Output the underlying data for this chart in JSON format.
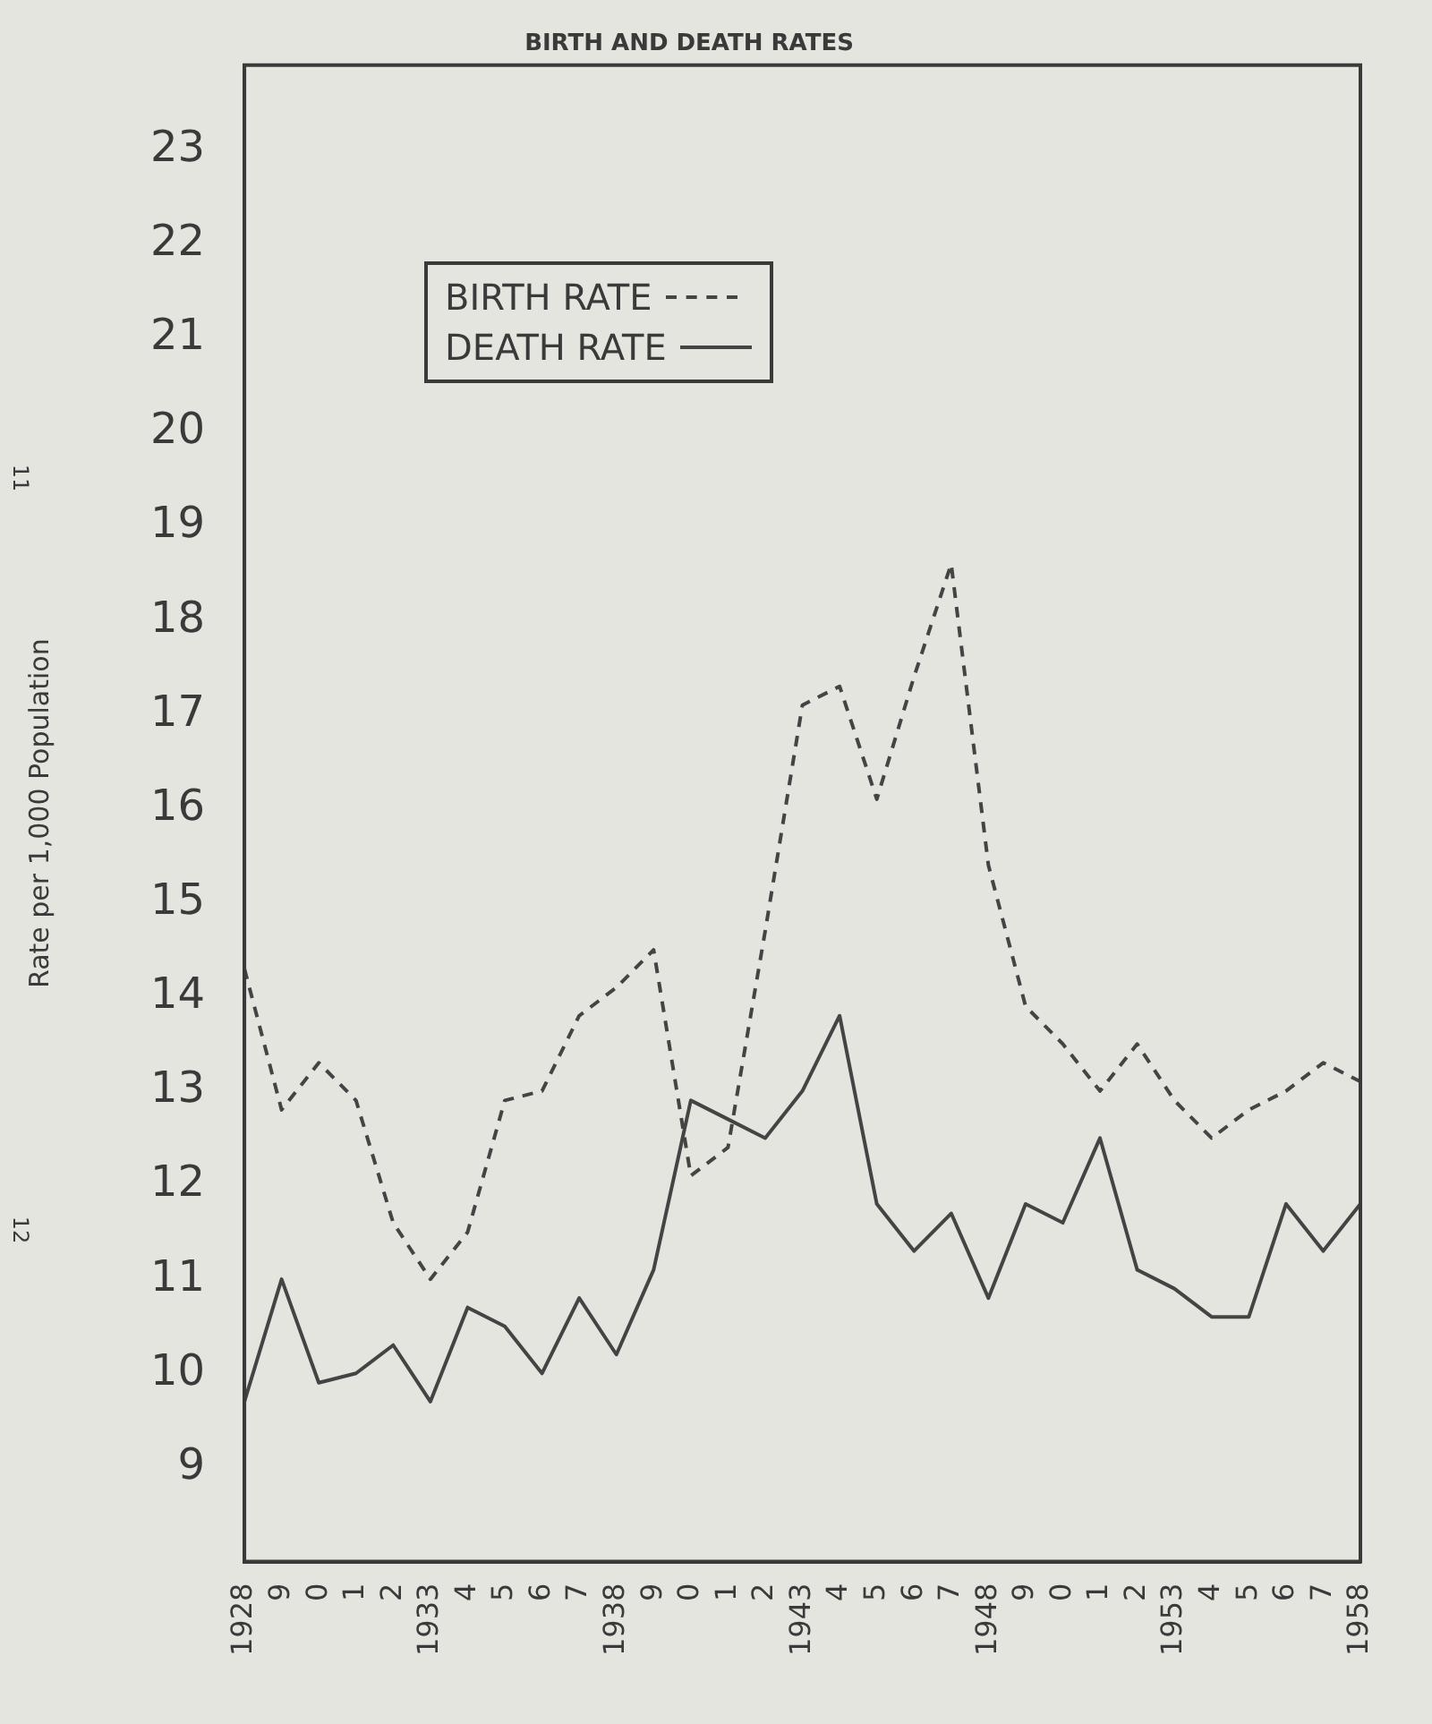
{
  "chart_data": {
    "type": "line",
    "title": "BIRTH AND DEATH RATES",
    "ylabel": "Rate per 1,000 Population",
    "categories": [
      "1928",
      "9",
      "0",
      "1",
      "2",
      "1933",
      "4",
      "5",
      "6",
      "7",
      "1938",
      "9",
      "0",
      "1",
      "2",
      "1943",
      "4",
      "5",
      "6",
      "7",
      "1948",
      "9",
      "0",
      "1",
      "2",
      "1953",
      "4",
      "5",
      "6",
      "7",
      "1958"
    ],
    "series": [
      {
        "name": "BIRTH RATE",
        "color": "#444444",
        "line_style": "dashed",
        "values": [
          14.3,
          12.8,
          13.3,
          12.9,
          11.6,
          11.0,
          11.5,
          12.9,
          13.0,
          13.8,
          14.1,
          14.5,
          12.1,
          12.4,
          14.7,
          17.1,
          17.3,
          16.1,
          17.4,
          18.6,
          15.4,
          13.9,
          13.5,
          13.0,
          13.5,
          12.9,
          12.5,
          12.8,
          13.0,
          13.3,
          13.1
        ]
      },
      {
        "name": "DEATH RATE",
        "color": "#444444",
        "line_style": "solid",
        "values": [
          9.7,
          11.0,
          9.9,
          10.0,
          10.3,
          9.7,
          10.7,
          10.5,
          10.0,
          10.8,
          10.2,
          11.1,
          12.9,
          12.7,
          12.5,
          13.0,
          13.8,
          11.8,
          11.3,
          11.7,
          10.8,
          11.8,
          11.6,
          12.5,
          11.1,
          10.9,
          10.6,
          10.6,
          11.8,
          11.3,
          11.8
        ]
      }
    ],
    "ylim": [
      8,
      23.9
    ],
    "yticks": [
      9,
      10,
      11,
      12,
      13,
      14,
      15,
      16,
      17,
      18,
      19,
      20,
      21,
      22,
      23
    ],
    "grid": false,
    "legend": "top left",
    "marker": "none",
    "annotations": [
      "11",
      "12"
    ]
  }
}
